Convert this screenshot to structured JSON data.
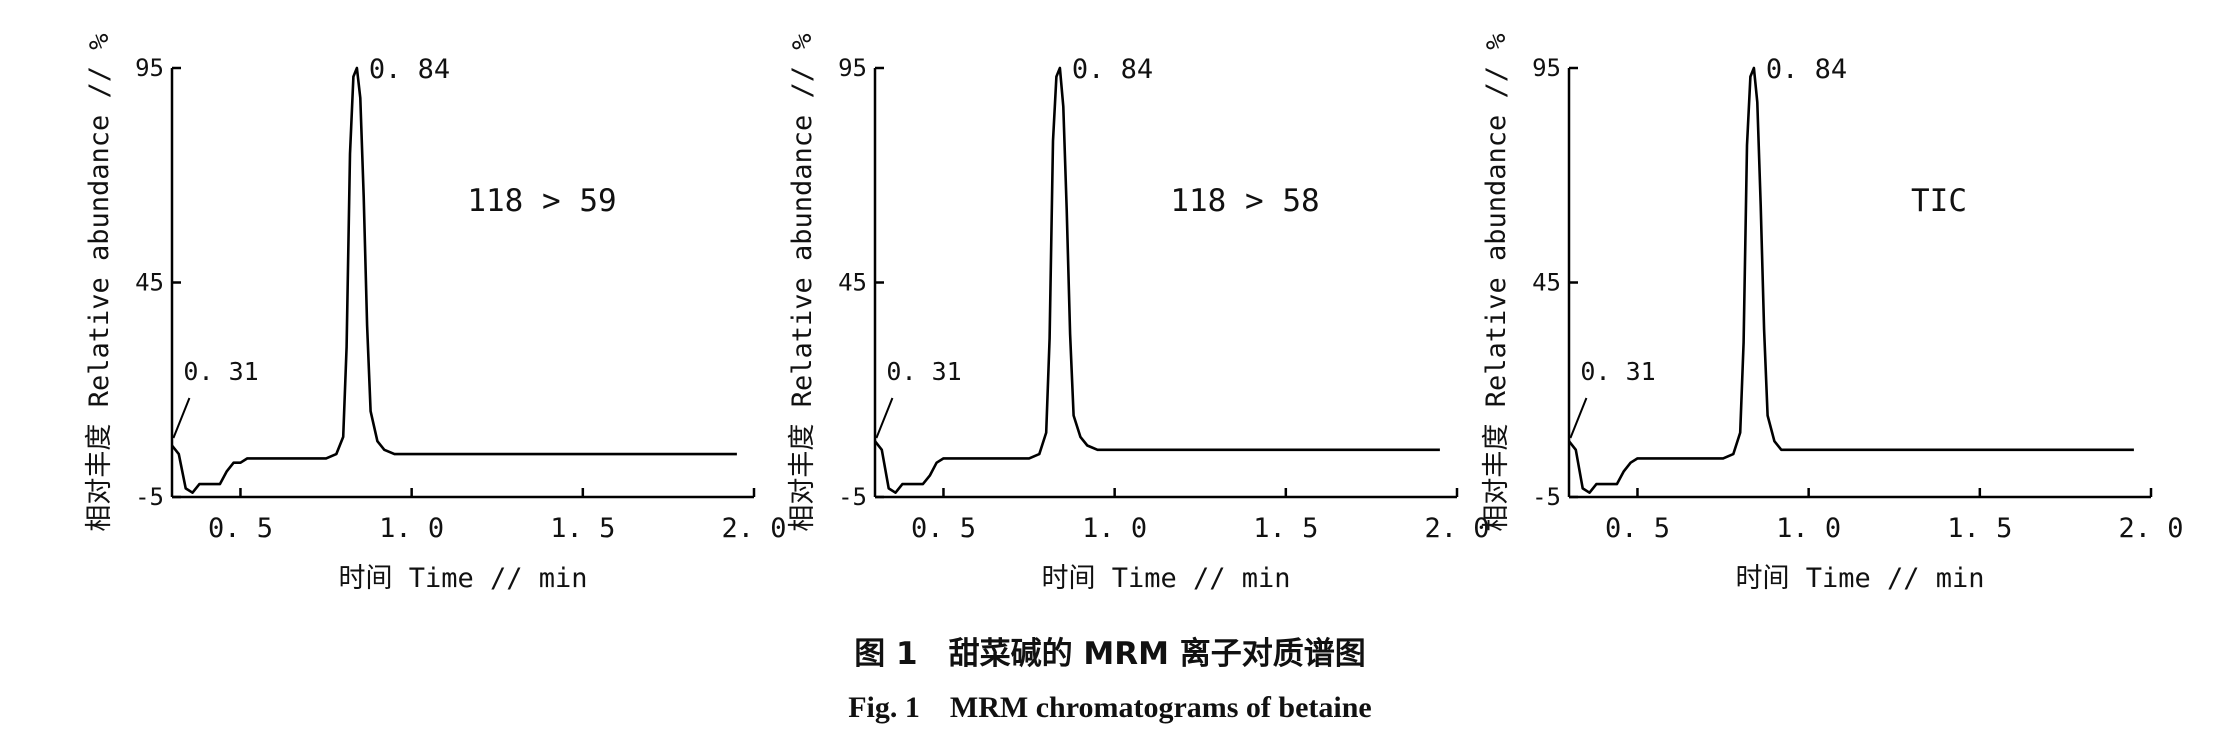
{
  "chart_data": [
    {
      "type": "line",
      "label": "118 > 59",
      "xlabel": "时间 Time // min",
      "ylabel": "相对丰度 Relative abundance // %",
      "xlim": [
        0.3,
        2.0
      ],
      "ylim": [
        -5,
        95
      ],
      "xticks": [
        "0.5",
        "1.0",
        "1.5",
        "2.0"
      ],
      "yticks": [
        "-5",
        "45",
        "95"
      ],
      "peaks": [
        {
          "x": 0.84,
          "label": "0.84"
        },
        {
          "x": 0.31,
          "label": "0.31"
        }
      ],
      "series": [
        {
          "x": [
            0.3,
            0.32,
            0.34,
            0.36,
            0.38,
            0.4,
            0.44,
            0.46,
            0.48,
            0.5,
            0.52,
            0.6,
            0.7,
            0.75,
            0.78,
            0.8,
            0.81,
            0.82,
            0.83,
            0.84,
            0.85,
            0.86,
            0.87,
            0.88,
            0.9,
            0.92,
            0.95,
            1.0,
            1.2,
            1.4,
            1.6,
            1.8,
            1.95
          ],
          "y": [
            7,
            5,
            -3,
            -4,
            -2,
            -2,
            -2,
            1,
            3,
            3,
            4,
            4,
            4,
            4,
            5,
            9,
            30,
            75,
            93,
            95,
            88,
            65,
            35,
            15,
            8,
            6,
            5,
            5,
            5,
            5,
            5,
            5,
            5
          ]
        }
      ]
    },
    {
      "type": "line",
      "label": "118 > 58",
      "xlabel": "时间 Time // min",
      "ylabel": "相对丰度 Relative abundance // %",
      "xlim": [
        0.3,
        2.0
      ],
      "ylim": [
        -5,
        95
      ],
      "xticks": [
        "0.5",
        "1.0",
        "1.5",
        "2.0"
      ],
      "yticks": [
        "-5",
        "45",
        "95"
      ],
      "peaks": [
        {
          "x": 0.84,
          "label": "0.84"
        },
        {
          "x": 0.31,
          "label": "0.31"
        }
      ],
      "series": [
        {
          "x": [
            0.3,
            0.32,
            0.34,
            0.36,
            0.38,
            0.4,
            0.44,
            0.46,
            0.48,
            0.5,
            0.52,
            0.6,
            0.7,
            0.75,
            0.78,
            0.8,
            0.81,
            0.82,
            0.83,
            0.84,
            0.85,
            0.86,
            0.87,
            0.88,
            0.9,
            0.92,
            0.95,
            1.0,
            1.2,
            1.4,
            1.6,
            1.8,
            1.95
          ],
          "y": [
            8,
            6,
            -3,
            -4,
            -2,
            -2,
            -2,
            0,
            3,
            4,
            4,
            4,
            4,
            4,
            5,
            10,
            32,
            78,
            93,
            95,
            86,
            62,
            33,
            14,
            9,
            7,
            6,
            6,
            6,
            6,
            6,
            6,
            6
          ]
        }
      ]
    },
    {
      "type": "line",
      "label": "TIC",
      "xlabel": "时间 Time // min",
      "ylabel": "相对丰度 Relative abundance // %",
      "xlim": [
        0.3,
        2.0
      ],
      "ylim": [
        -5,
        95
      ],
      "xticks": [
        "0.5",
        "1.0",
        "1.5",
        "2.0"
      ],
      "yticks": [
        "-5",
        "45",
        "95"
      ],
      "peaks": [
        {
          "x": 0.84,
          "label": "0.84"
        },
        {
          "x": 0.31,
          "label": "0.31"
        }
      ],
      "series": [
        {
          "x": [
            0.3,
            0.32,
            0.34,
            0.36,
            0.38,
            0.4,
            0.44,
            0.46,
            0.48,
            0.5,
            0.52,
            0.6,
            0.7,
            0.75,
            0.78,
            0.8,
            0.81,
            0.82,
            0.83,
            0.84,
            0.85,
            0.86,
            0.87,
            0.88,
            0.9,
            0.92,
            0.95,
            1.0,
            1.2,
            1.4,
            1.6,
            1.8,
            1.95
          ],
          "y": [
            8,
            6,
            -3,
            -4,
            -2,
            -2,
            -2,
            1,
            3,
            4,
            4,
            4,
            4,
            4,
            5,
            10,
            31,
            77,
            93,
            95,
            87,
            63,
            34,
            14,
            8,
            6,
            6,
            6,
            6,
            6,
            6,
            6,
            6
          ]
        }
      ]
    }
  ],
  "caption": {
    "cn": "图 1　甜菜碱的 MRM 离子对质谱图",
    "en": "Fig. 1　MRM chromatograms of betaine"
  }
}
